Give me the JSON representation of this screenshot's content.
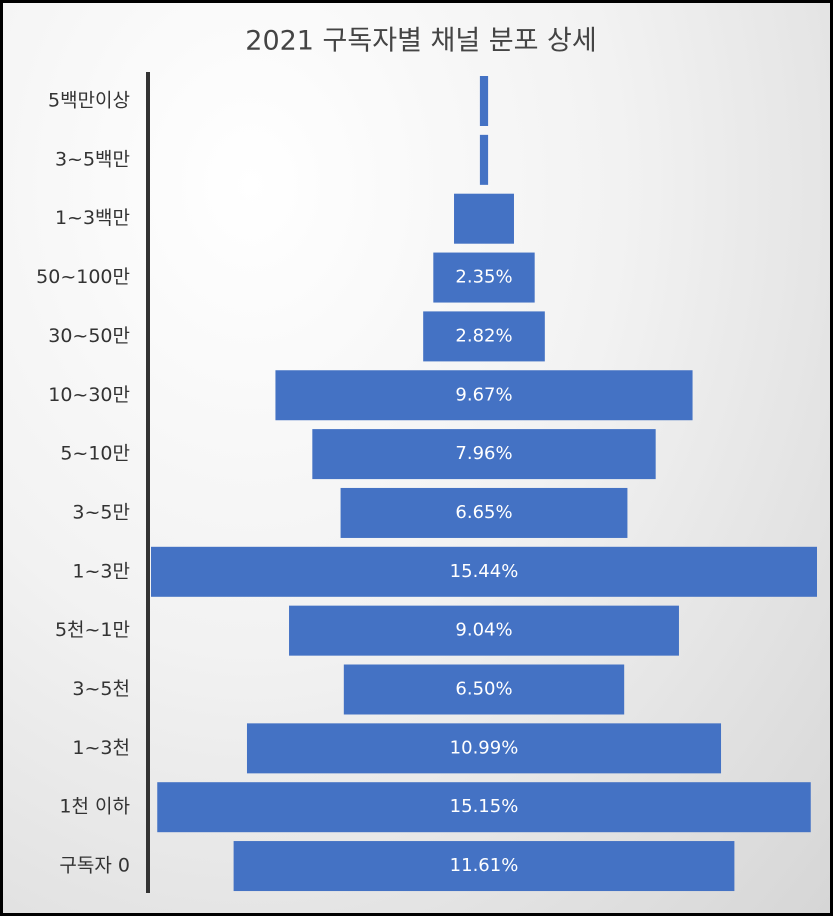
{
  "chart_data": {
    "type": "funnel",
    "title": "2021 구독자별 채널 분포 상세",
    "categories": [
      "5백만이상",
      "3~5백만",
      "1~3백만",
      "50~100만",
      "30~50만",
      "10~30만",
      "5~10만",
      "3~5만",
      "1~3만",
      "5천~1만",
      "3~5천",
      "1~3천",
      "1천 이하",
      "구독자 0"
    ],
    "values": [
      0.19,
      0.19,
      1.39,
      2.35,
      2.82,
      9.67,
      7.96,
      6.65,
      15.44,
      9.04,
      6.5,
      10.99,
      15.15,
      11.61
    ],
    "value_labels": [
      null,
      null,
      null,
      "2.35%",
      "2.82%",
      "9.67%",
      "7.96%",
      "6.65%",
      "15.44%",
      "9.04%",
      "6.50%",
      "10.99%",
      "15.15%",
      "11.61%"
    ],
    "color": "#4472c4"
  }
}
